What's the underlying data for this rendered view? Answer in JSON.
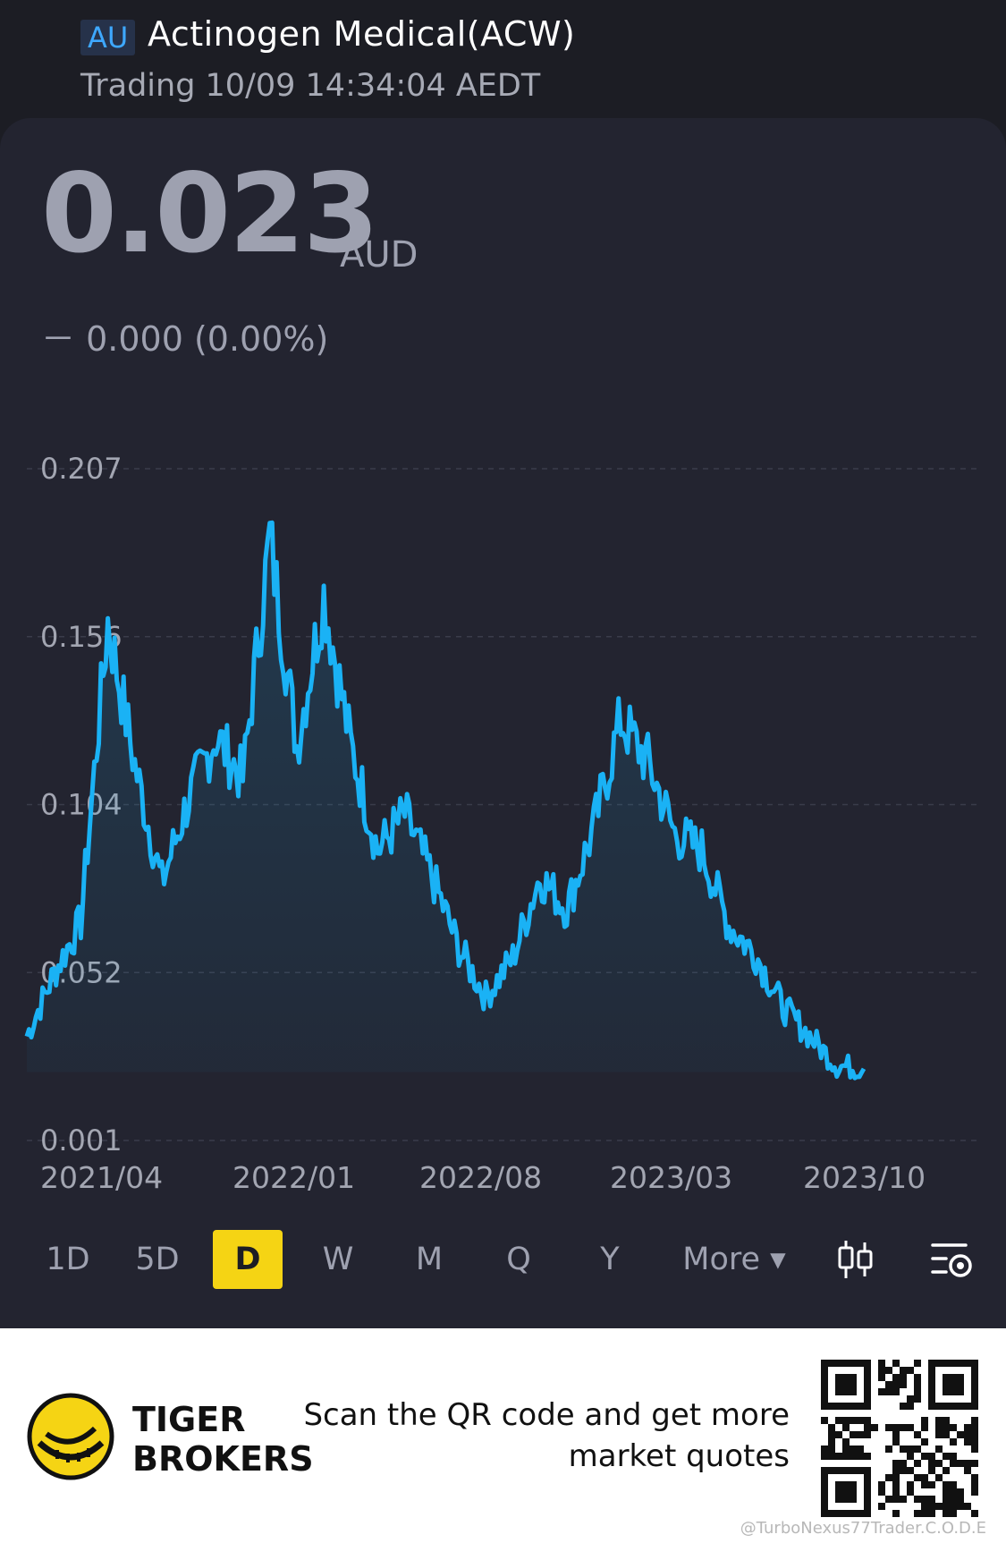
{
  "header": {
    "market": "AU",
    "title": "Actinogen Medical(ACW)",
    "status": "Trading 10/09 14:34:04 AEDT"
  },
  "quote": {
    "price": "0.023",
    "currency": "AUD",
    "change": "－ 0.000 (0.00%)"
  },
  "colors": {
    "line": "#1ab2f5",
    "accent": "#f5d414",
    "background": "#232430"
  },
  "chart_data": {
    "type": "area",
    "y_ticks": [
      "0.207",
      "0.156",
      "0.104",
      "0.052",
      "0.001"
    ],
    "x_ticks": [
      "2021/04",
      "2022/01",
      "2022/08",
      "2023/03",
      "2023/10"
    ],
    "ylim": [
      0.001,
      0.207
    ],
    "grid": true,
    "series": [
      {
        "x": [
          "2021/03",
          "2021/04",
          "2021/05",
          "2021/06",
          "2021/07",
          "2021/08",
          "2021/09",
          "2021/10",
          "2021/11",
          "2021/12",
          "2022/01",
          "2022/02",
          "2022/03",
          "2022/04",
          "2022/05",
          "2022/06",
          "2022/07",
          "2022/08",
          "2022/09",
          "2022/10",
          "2022/11",
          "2022/12",
          "2023/01",
          "2023/02",
          "2023/03",
          "2023/04",
          "2023/05",
          "2023/06",
          "2023/07",
          "2023/08",
          "2023/09",
          "2023/10"
        ],
        "values": [
          0.033,
          0.052,
          0.068,
          0.16,
          0.116,
          0.08,
          0.106,
          0.125,
          0.112,
          0.186,
          0.122,
          0.168,
          0.122,
          0.09,
          0.101,
          0.082,
          0.06,
          0.045,
          0.057,
          0.082,
          0.072,
          0.097,
          0.13,
          0.117,
          0.095,
          0.09,
          0.067,
          0.058,
          0.042,
          0.033,
          0.024,
          0.023
        ]
      }
    ]
  },
  "periods": {
    "p1d": "1D",
    "p5d": "5D",
    "pd": "D",
    "pw": "W",
    "pm": "M",
    "pq": "Q",
    "py": "Y",
    "more": "More ▾"
  },
  "footer": {
    "brand_line1": "TIGER",
    "brand_line2": "BROKERS",
    "promo": "Scan the QR code and get more\nmarket quotes",
    "watermark": "@TurboNexus77Trader.C.O.D.E"
  }
}
